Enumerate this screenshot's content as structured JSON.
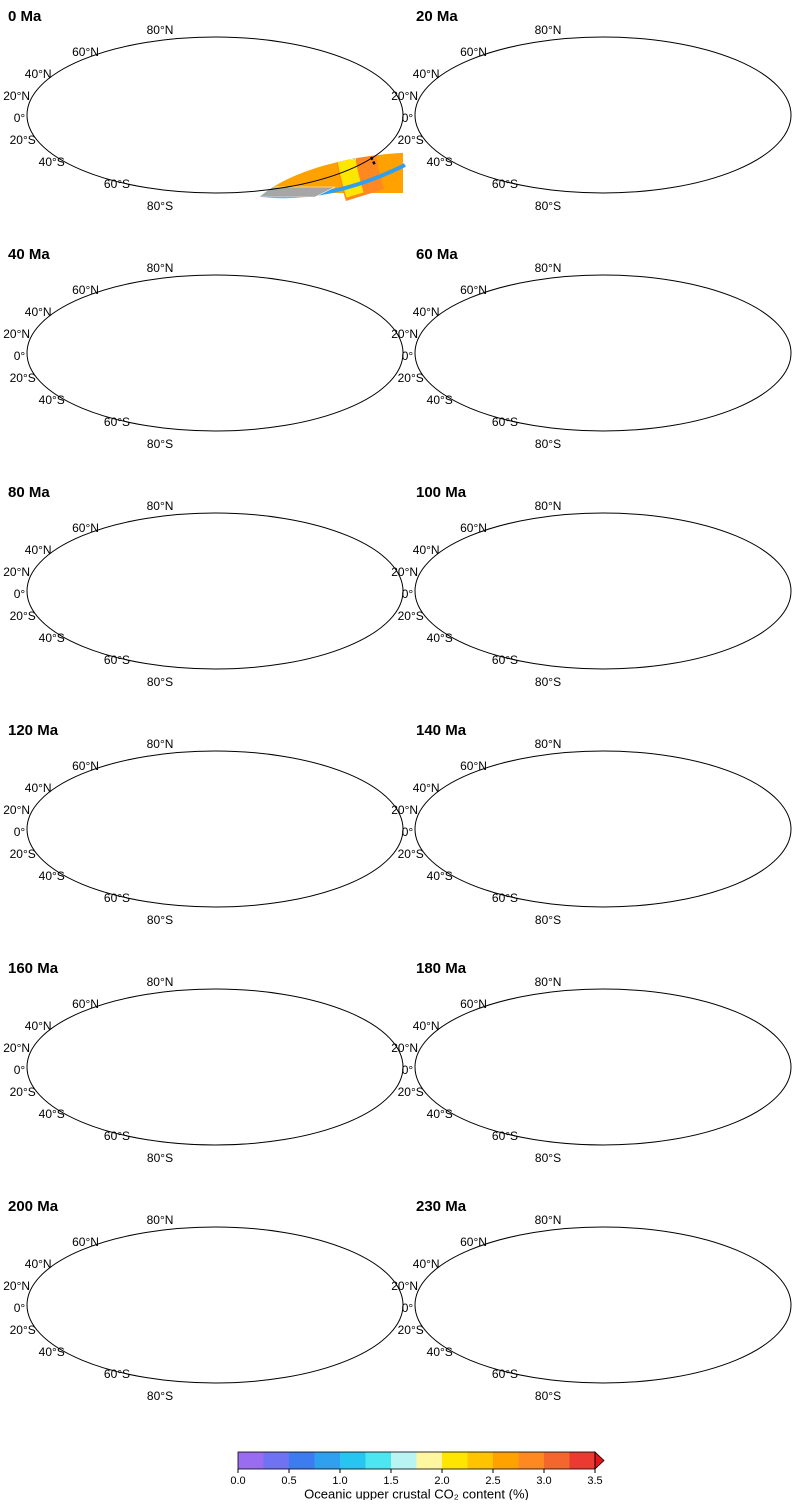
{
  "panels": [
    {
      "title": "0 Ma"
    },
    {
      "title": "20 Ma"
    },
    {
      "title": "40 Ma"
    },
    {
      "title": "60 Ma"
    },
    {
      "title": "80 Ma"
    },
    {
      "title": "100 Ma"
    },
    {
      "title": "120 Ma"
    },
    {
      "title": "140 Ma"
    },
    {
      "title": "160 Ma"
    },
    {
      "title": "180 Ma"
    },
    {
      "title": "200 Ma"
    },
    {
      "title": "230 Ma"
    }
  ],
  "lat_labels": [
    "80°N",
    "60°N",
    "40°N",
    "20°N",
    "0°",
    "20°S",
    "40°S",
    "60°S",
    "80°S"
  ],
  "colorbar": {
    "label": "Oceanic upper crustal CO₂ content (%)",
    "lim": [
      0,
      3.5
    ],
    "extend": "max",
    "ticks": [
      {
        "value": 0,
        "label": "0.0"
      },
      {
        "value": 0.5,
        "label": "0.5"
      },
      {
        "value": 1,
        "label": "1.0"
      },
      {
        "value": 1.5,
        "label": "1.5"
      },
      {
        "value": 2,
        "label": "2.0"
      },
      {
        "value": 2.5,
        "label": "2.5"
      },
      {
        "value": 3,
        "label": "3.0"
      },
      {
        "value": 3.5,
        "label": "3.5"
      }
    ],
    "colors": [
      "#9a6cf2",
      "#6f72f2",
      "#3d7cf0",
      "#2f9ff0",
      "#27c6f0",
      "#4be6ef",
      "#b9f4f2",
      "#fff7a0",
      "#ffe600",
      "#ffc400",
      "#ffa200",
      "#ff8820",
      "#f5662e",
      "#ec3a32",
      "#e3141c"
    ]
  }
}
